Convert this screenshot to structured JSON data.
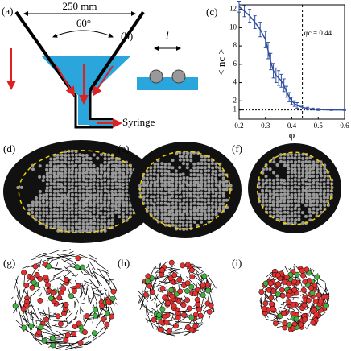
{
  "panel_labels": [
    "(a)",
    "(b)",
    "(c)",
    "(d)",
    "(e)",
    "(f)",
    "(g)",
    "(h)",
    "(i)"
  ],
  "panel_a": {
    "width_label": "250 mm",
    "angle_label": "60°",
    "outlet_label": "Syringe"
  },
  "panel_b": {
    "length_label": "l"
  },
  "chart_data": {
    "type": "line",
    "x_label": "φ",
    "y_label": "< nc >",
    "x": [
      0.2,
      0.22,
      0.24,
      0.26,
      0.28,
      0.3,
      0.31,
      0.32,
      0.33,
      0.34,
      0.35,
      0.36,
      0.37,
      0.38,
      0.39,
      0.4,
      0.41,
      0.42,
      0.44,
      0.46,
      0.48,
      0.5,
      0.55,
      0.6
    ],
    "series": [
      {
        "name": "<nc>",
        "color": "#2f4fa0",
        "values": [
          12.3,
          11.8,
          11.3,
          10.6,
          9.8,
          8.7,
          7.5,
          6.3,
          5.3,
          4.8,
          4.5,
          4.2,
          3.7,
          3.0,
          2.4,
          2.0,
          1.7,
          1.5,
          1.3,
          1.15,
          1.1,
          1.05,
          1.0,
          1.0
        ],
        "errors": [
          0.6,
          0.6,
          0.7,
          0.7,
          0.8,
          0.9,
          0.9,
          0.9,
          0.8,
          0.8,
          0.8,
          0.7,
          0.7,
          0.6,
          0.5,
          0.4,
          0.3,
          0.3,
          0.2,
          0.15,
          0.1,
          0.1,
          0.05,
          0.05
        ]
      }
    ],
    "xlim": [
      0.2,
      0.6
    ],
    "xticks": [
      0.2,
      0.3,
      0.4,
      0.5,
      0.6
    ],
    "ylim": [
      0,
      12.5
    ],
    "yticks": [
      1,
      2,
      4,
      6,
      8,
      10,
      12
    ],
    "threshold": {
      "x": 0.44,
      "label": "φc = 0.44"
    },
    "baseline": 1,
    "grid": false
  }
}
